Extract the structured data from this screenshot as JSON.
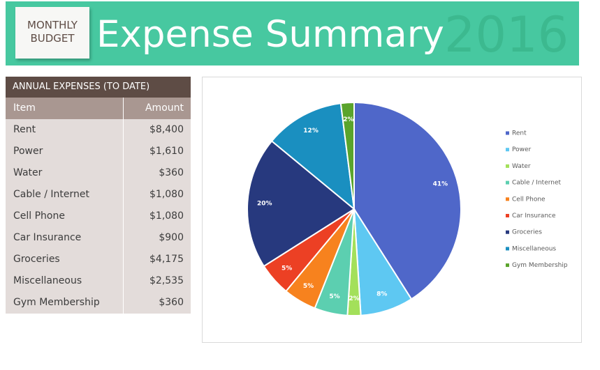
{
  "header": {
    "badge": [
      "MONTHLY",
      "BUDGET"
    ],
    "title": "Expense Summary",
    "year": "2016"
  },
  "table": {
    "title": "ANNUAL EXPENSES (TO DATE)",
    "columns": [
      "Item",
      "Amount"
    ],
    "rows": [
      [
        "Rent",
        "$8,400"
      ],
      [
        "Power",
        "$1,610"
      ],
      [
        "Water",
        "$360"
      ],
      [
        "Cable / Internet",
        "$1,080"
      ],
      [
        "Cell Phone",
        "$1,080"
      ],
      [
        "Car Insurance",
        "$900"
      ],
      [
        "Groceries",
        "$4,175"
      ],
      [
        "Miscellaneous",
        "$2,535"
      ],
      [
        "Gym Membership",
        "$360"
      ]
    ]
  },
  "chart_data": {
    "type": "pie",
    "categories": [
      "Rent",
      "Power",
      "Water",
      "Cable / Internet",
      "Cell Phone",
      "Car Insurance",
      "Groceries",
      "Miscellaneous",
      "Gym Membership"
    ],
    "values": [
      41,
      8,
      2,
      5,
      5,
      5,
      20,
      12,
      2
    ],
    "value_labels": [
      "41%",
      "8%",
      "2%",
      "5%",
      "5%",
      "5%",
      "20%",
      "12%",
      "2%"
    ],
    "colors": [
      "#4f67c9",
      "#5ec8f2",
      "#a3e05a",
      "#5ccfb0",
      "#f7821e",
      "#ec4024",
      "#27397e",
      "#1a8fc0",
      "#5aa42c"
    ],
    "legend": "right"
  }
}
